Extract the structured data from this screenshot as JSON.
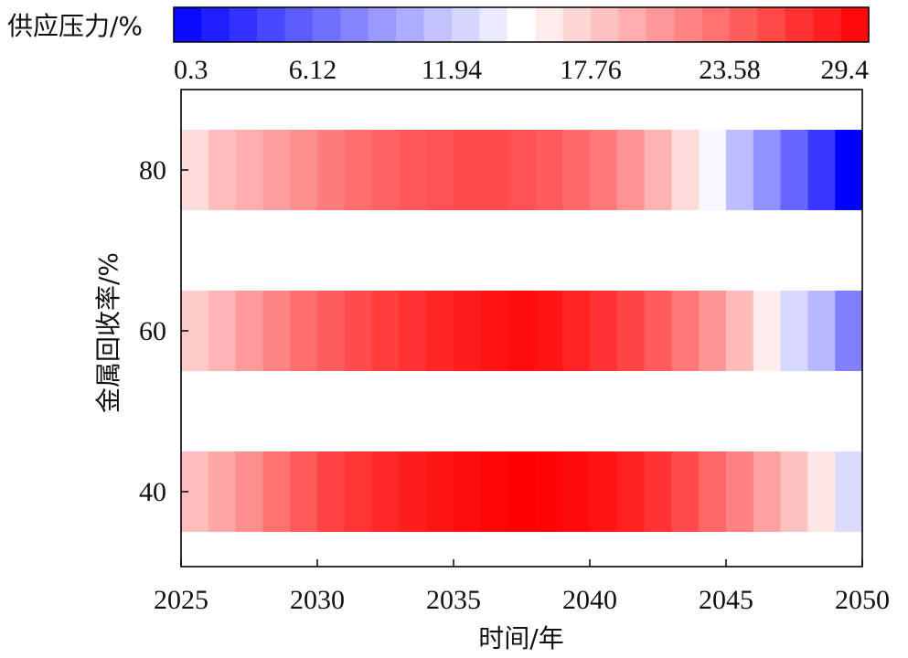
{
  "chart_data": {
    "type": "heatmap",
    "title": "",
    "xlabel": "时间/年",
    "ylabel": "金属回收率/%",
    "colorbar_label": "供应压力/%",
    "colorbar_ticks": [
      "0.3",
      "6.12",
      "11.94",
      "17.76",
      "23.58",
      "29.4"
    ],
    "colorbar_range": [
      0.3,
      29.4
    ],
    "colormap": {
      "low": "#0000ff",
      "mid": "#ffffff",
      "high": "#ff0000"
    },
    "xlim": [
      2025,
      2050
    ],
    "x_ticks": [
      "2025",
      "2030",
      "2035",
      "2040",
      "2045",
      "2050"
    ],
    "y_ticks": [
      "40",
      "60",
      "80"
    ],
    "x": [
      2025,
      2026,
      2027,
      2028,
      2029,
      2030,
      2031,
      2032,
      2033,
      2034,
      2035,
      2036,
      2037,
      2038,
      2039,
      2040,
      2041,
      2042,
      2043,
      2044,
      2045,
      2046,
      2047,
      2048,
      2049
    ],
    "series": [
      {
        "name": "40",
        "values": [
          18.6,
          19.9,
          21.3,
          22.9,
          24.3,
          25.6,
          26.4,
          27.1,
          27.7,
          28.2,
          28.7,
          29.1,
          29.4,
          29.2,
          28.8,
          28.3,
          27.5,
          26.5,
          25.1,
          23.6,
          22.0,
          20.2,
          18.4,
          16.2,
          12.8
        ]
      },
      {
        "name": "60",
        "values": [
          17.9,
          19.1,
          20.6,
          21.8,
          23.1,
          24.1,
          25.0,
          25.9,
          26.6,
          27.3,
          27.8,
          28.4,
          28.7,
          28.2,
          27.4,
          26.6,
          25.5,
          24.2,
          22.6,
          20.9,
          18.8,
          15.9,
          12.6,
          10.8,
          7.6
        ]
      },
      {
        "name": "80",
        "values": [
          16.8,
          18.6,
          19.5,
          20.4,
          21.3,
          22.3,
          23.1,
          23.8,
          24.4,
          24.8,
          25.1,
          25.1,
          24.8,
          24.2,
          23.4,
          22.5,
          21.0,
          19.2,
          16.9,
          14.4,
          11.1,
          8.6,
          6.1,
          3.5,
          0.3
        ]
      }
    ]
  }
}
